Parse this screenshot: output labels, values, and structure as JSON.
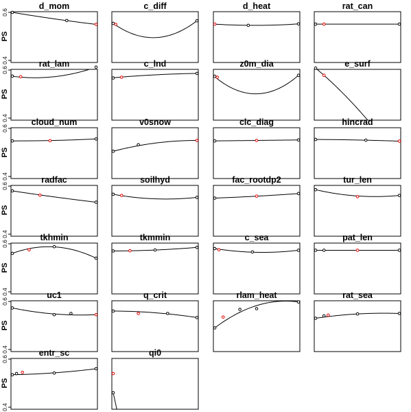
{
  "figure": {
    "ylabel": "PS"
  },
  "chart_data": {
    "type": "line",
    "ylabel": "PS",
    "ylim": [
      0.4,
      0.6
    ],
    "yticks": [
      "0.4",
      "0.6"
    ],
    "xlabel": "",
    "grid": false,
    "panels": [
      {
        "title": "d_mom",
        "curve": [
          [
            0,
            0.6
          ],
          [
            0.5,
            0.573
          ],
          [
            1,
            0.55
          ]
        ],
        "points": [
          [
            0,
            0.6,
            "black"
          ],
          [
            0.65,
            0.566,
            "black"
          ],
          [
            1,
            0.55,
            "red"
          ]
        ]
      },
      {
        "title": "c_diff",
        "curve": [
          [
            0,
            0.554
          ],
          [
            0.45,
            0.495
          ],
          [
            1,
            0.565
          ]
        ],
        "points": [
          [
            0,
            0.554,
            "black"
          ],
          [
            0.03,
            0.55,
            "red"
          ],
          [
            1,
            0.565,
            "black"
          ]
        ]
      },
      {
        "title": "d_heat",
        "curve": [
          [
            0,
            0.551
          ],
          [
            0.5,
            0.546
          ],
          [
            1,
            0.552
          ]
        ],
        "points": [
          [
            0,
            0.551,
            "red"
          ],
          [
            0.4,
            0.546,
            "black"
          ],
          [
            1,
            0.552,
            "black"
          ]
        ]
      },
      {
        "title": "rat_can",
        "curve": [
          [
            0,
            0.551
          ],
          [
            0.5,
            0.551
          ],
          [
            1,
            0.551
          ]
        ],
        "points": [
          [
            0,
            0.551,
            "black"
          ],
          [
            0.1,
            0.551,
            "red"
          ],
          [
            1,
            0.551,
            "black"
          ]
        ]
      },
      {
        "title": "rat_lam",
        "curve": [
          [
            0,
            0.574
          ],
          [
            0.3,
            0.568
          ],
          [
            1,
            0.612
          ]
        ],
        "points": [
          [
            0,
            0.575,
            "black"
          ],
          [
            0.1,
            0.572,
            "red"
          ],
          [
            1,
            0.612,
            "black"
          ]
        ]
      },
      {
        "title": "c_lnd",
        "curve": [
          [
            0,
            0.568
          ],
          [
            0.5,
            0.58
          ],
          [
            1,
            0.586
          ]
        ],
        "points": [
          [
            0,
            0.567,
            "black"
          ],
          [
            0.1,
            0.57,
            "red"
          ],
          [
            1,
            0.586,
            "black"
          ]
        ]
      },
      {
        "title": "z0m_dia",
        "curve": [
          [
            0,
            0.572
          ],
          [
            0.55,
            0.502
          ],
          [
            1,
            0.578
          ]
        ],
        "points": [
          [
            0,
            0.574,
            "black"
          ],
          [
            0.03,
            0.57,
            "red"
          ],
          [
            1,
            0.578,
            "black"
          ]
        ]
      },
      {
        "title": "e_surf",
        "curve": [
          [
            0,
            0.608
          ],
          [
            0.1,
            0.578
          ],
          [
            0.65,
            0.38
          ]
        ],
        "points": [
          [
            0,
            0.608,
            "black"
          ],
          [
            0.1,
            0.578,
            "red"
          ]
        ]
      },
      {
        "title": "cloud_num",
        "curve": [
          [
            0,
            0.548
          ],
          [
            0.5,
            0.55
          ],
          [
            1,
            0.556
          ]
        ],
        "points": [
          [
            0,
            0.548,
            "black"
          ],
          [
            0.45,
            0.549,
            "red"
          ],
          [
            1,
            0.556,
            "black"
          ]
        ]
      },
      {
        "title": "v0snow",
        "curve": [
          [
            0,
            0.505
          ],
          [
            0.3,
            0.528
          ],
          [
            1,
            0.55
          ]
        ],
        "points": [
          [
            0,
            0.505,
            "black"
          ],
          [
            0.3,
            0.532,
            "black"
          ],
          [
            1,
            0.55,
            "red"
          ]
        ]
      },
      {
        "title": "clc_diag",
        "curve": [
          [
            0,
            0.548
          ],
          [
            0.5,
            0.55
          ],
          [
            1,
            0.552
          ]
        ],
        "points": [
          [
            0,
            0.548,
            "black"
          ],
          [
            0.5,
            0.55,
            "red"
          ],
          [
            1,
            0.552,
            "black"
          ]
        ]
      },
      {
        "title": "hincrad",
        "curve": [
          [
            0,
            0.554
          ],
          [
            0.6,
            0.551
          ],
          [
            1,
            0.547
          ]
        ],
        "points": [
          [
            0,
            0.554,
            "black"
          ],
          [
            0.6,
            0.551,
            "black"
          ],
          [
            1,
            0.547,
            "red"
          ]
        ]
      },
      {
        "title": "radfac",
        "curve": [
          [
            0,
            0.58
          ],
          [
            0.5,
            0.555
          ],
          [
            1,
            0.533
          ]
        ],
        "points": [
          [
            0,
            0.58,
            "black"
          ],
          [
            0.33,
            0.562,
            "red"
          ],
          [
            1,
            0.533,
            "black"
          ]
        ]
      },
      {
        "title": "soilhyd",
        "curve": [
          [
            0,
            0.566
          ],
          [
            0.5,
            0.547
          ],
          [
            1,
            0.553
          ]
        ],
        "points": [
          [
            0,
            0.566,
            "black"
          ],
          [
            0.1,
            0.561,
            "red"
          ],
          [
            1,
            0.553,
            "black"
          ]
        ]
      },
      {
        "title": "fac_rootdp2",
        "curve": [
          [
            0,
            0.55
          ],
          [
            0.5,
            0.558
          ],
          [
            1,
            0.569
          ]
        ],
        "points": [
          [
            0,
            0.55,
            "black"
          ],
          [
            0.5,
            0.558,
            "red"
          ],
          [
            1,
            0.569,
            "black"
          ]
        ]
      },
      {
        "title": "tur_len",
        "curve": [
          [
            0,
            0.585
          ],
          [
            0.6,
            0.557
          ],
          [
            1,
            0.561
          ]
        ],
        "points": [
          [
            0,
            0.585,
            "black"
          ],
          [
            0.5,
            0.556,
            "red"
          ],
          [
            1,
            0.561,
            "black"
          ]
        ]
      },
      {
        "title": "tkhmin",
        "curve": [
          [
            0,
            0.56
          ],
          [
            0.5,
            0.587
          ],
          [
            1,
            0.54
          ]
        ],
        "points": [
          [
            0,
            0.56,
            "black"
          ],
          [
            0.2,
            0.575,
            "red"
          ],
          [
            0.5,
            0.588,
            "black"
          ],
          [
            1,
            0.54,
            "black"
          ]
        ]
      },
      {
        "title": "tkmmin",
        "curve": [
          [
            0,
            0.57
          ],
          [
            0.5,
            0.574
          ],
          [
            1,
            0.585
          ]
        ],
        "points": [
          [
            0,
            0.57,
            "black"
          ],
          [
            0.2,
            0.571,
            "red"
          ],
          [
            0.5,
            0.574,
            "black"
          ],
          [
            1,
            0.585,
            "black"
          ]
        ]
      },
      {
        "title": "c_sea",
        "curve": [
          [
            0,
            0.58
          ],
          [
            0.45,
            0.565
          ],
          [
            1,
            0.573
          ]
        ],
        "points": [
          [
            0,
            0.58,
            "black"
          ],
          [
            0.05,
            0.575,
            "red"
          ],
          [
            0.45,
            0.566,
            "black"
          ],
          [
            1,
            0.573,
            "black"
          ]
        ]
      },
      {
        "title": "pat_len",
        "curve": [
          [
            0,
            0.573
          ],
          [
            0.5,
            0.573
          ],
          [
            1,
            0.573
          ]
        ],
        "points": [
          [
            0,
            0.573,
            "black"
          ],
          [
            0.1,
            0.573,
            "black"
          ],
          [
            0.5,
            0.573,
            "red"
          ],
          [
            1,
            0.573,
            "black"
          ]
        ]
      },
      {
        "title": "uc1",
        "curve": [
          [
            0,
            0.573
          ],
          [
            0.5,
            0.548
          ],
          [
            1,
            0.545
          ]
        ],
        "points": [
          [
            0,
            0.573,
            "black"
          ],
          [
            0.5,
            0.545,
            "black"
          ],
          [
            0.7,
            0.55,
            "black"
          ],
          [
            1,
            0.545,
            "red"
          ]
        ]
      },
      {
        "title": "q_crit",
        "curve": [
          [
            0,
            0.56
          ],
          [
            0.5,
            0.553
          ],
          [
            1,
            0.533
          ]
        ],
        "points": [
          [
            0,
            0.56,
            "black"
          ],
          [
            0.3,
            0.55,
            "red"
          ],
          [
            0.65,
            0.55,
            "black"
          ],
          [
            1,
            0.533,
            "black"
          ]
        ]
      },
      {
        "title": "rlam_heat",
        "curve": [
          [
            0,
            0.49
          ],
          [
            0.3,
            0.555
          ],
          [
            1,
            0.598
          ]
        ],
        "points": [
          [
            0,
            0.49,
            "black"
          ],
          [
            0.1,
            0.535,
            "red"
          ],
          [
            0.3,
            0.567,
            "black"
          ],
          [
            0.5,
            0.57,
            "black"
          ],
          [
            1,
            0.598,
            "black"
          ]
        ]
      },
      {
        "title": "rat_sea",
        "curve": [
          [
            0,
            0.53
          ],
          [
            0.5,
            0.548
          ],
          [
            1,
            0.55
          ]
        ],
        "points": [
          [
            0,
            0.53,
            "black"
          ],
          [
            0.1,
            0.54,
            "black"
          ],
          [
            0.15,
            0.543,
            "red"
          ],
          [
            0.5,
            0.548,
            "black"
          ],
          [
            1,
            0.55,
            "black"
          ]
        ]
      },
      {
        "title": "entr_sc",
        "curve": [
          [
            0,
            0.535
          ],
          [
            0.5,
            0.543
          ],
          [
            1,
            0.56
          ]
        ],
        "points": [
          [
            0,
            0.535,
            "black"
          ],
          [
            0.05,
            0.54,
            "black"
          ],
          [
            0.12,
            0.545,
            "red"
          ],
          [
            0.5,
            0.542,
            "black"
          ],
          [
            1,
            0.56,
            "black"
          ]
        ]
      },
      {
        "title": "qi0",
        "curve": [
          [
            0,
            0.46
          ],
          [
            0.05,
            0.38
          ]
        ],
        "points": [
          [
            0,
            0.54,
            "red"
          ],
          [
            0,
            0.46,
            "black"
          ]
        ]
      }
    ]
  }
}
